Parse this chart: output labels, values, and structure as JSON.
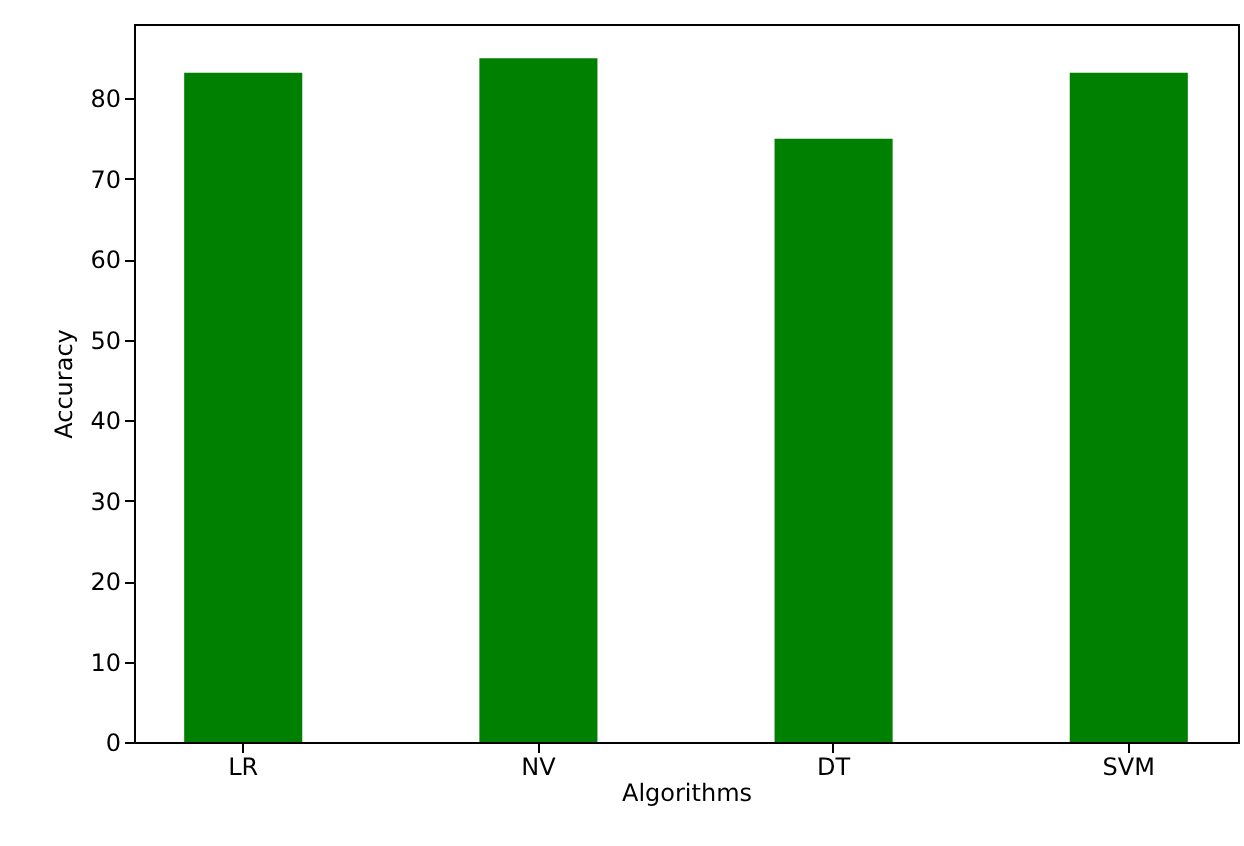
{
  "chart_data": {
    "type": "bar",
    "xlabel": "Algorithms",
    "ylabel": "Accuracy",
    "categories": [
      "LR",
      "NV",
      "DT",
      "SVM"
    ],
    "values": [
      83.2,
      85.0,
      75.0,
      83.2
    ],
    "color": "#008000",
    "ylim": [
      0,
      89.25
    ],
    "yticks": [
      0,
      10,
      20,
      30,
      40,
      50,
      60,
      70,
      80
    ],
    "grid": false
  }
}
